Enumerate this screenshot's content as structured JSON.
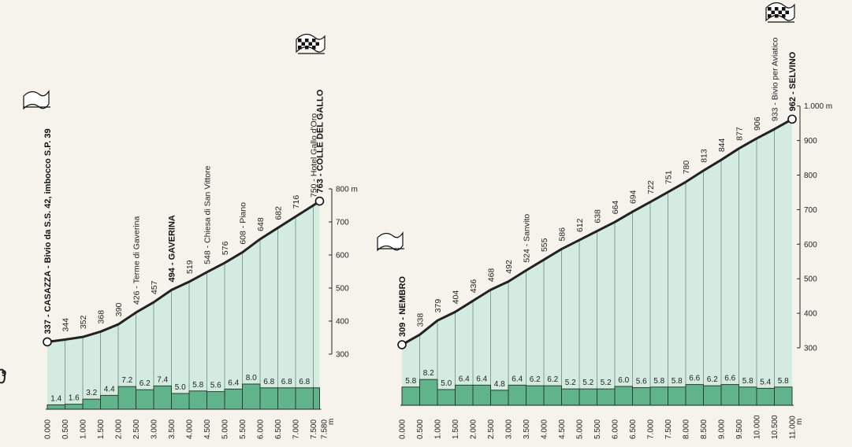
{
  "chart_data": [
    {
      "type": "area",
      "x_unit": "m",
      "y_unit": "m",
      "ylim": [
        300,
        800
      ],
      "y_ticks": [
        300,
        400,
        500,
        600,
        700,
        800
      ],
      "y_tick_labels": [
        "300",
        "400",
        "500",
        "600",
        "700",
        "800 m"
      ],
      "x": [
        0,
        0.5,
        1.0,
        1.5,
        2.0,
        2.5,
        3.0,
        3.5,
        4.0,
        4.5,
        5.0,
        5.5,
        6.0,
        6.5,
        7.0,
        7.5
      ],
      "x_tick_labels": [
        "0.000",
        "0.500",
        "1.000",
        "1.500",
        "2.000",
        "2.500",
        "3.000",
        "3.500",
        "4.000",
        "4.500",
        "5.000",
        "5.500",
        "6.000",
        "6.500",
        "7.000",
        "7.500"
      ],
      "x_last_extra": "7.580",
      "elevation": [
        337,
        344,
        352,
        368,
        390,
        426,
        457,
        494,
        519,
        548,
        576,
        608,
        648,
        682,
        716,
        750,
        763
      ],
      "elevation_x": [
        0,
        0.5,
        1.0,
        1.5,
        2.0,
        2.5,
        3.0,
        3.5,
        4.0,
        4.5,
        5.0,
        5.5,
        6.0,
        6.5,
        7.0,
        7.5,
        7.58
      ],
      "point_labels": [
        "337 - CASAZZA - Bivio da S.S. 42, imbocco S.P. 39",
        "344",
        "352",
        "368",
        "390",
        "426 - Terme di Gaverina",
        "457",
        "494 - GAVERINA",
        "519",
        "548 - Chiesa di San Vittore",
        "576",
        "608 - Piano",
        "648",
        "682",
        "716",
        "750 - Hotel Gallo d'Oro",
        "763 - COLLE DEL GALLO"
      ],
      "gradients": [
        1.4,
        1.6,
        3.2,
        4.4,
        7.2,
        6.2,
        7.4,
        5.0,
        5.8,
        5.6,
        6.4,
        8.0,
        6.8,
        6.8,
        6.8,
        6.8
      ],
      "gradient_labels": [
        "1.4",
        "1.6",
        "3.2",
        "4.4",
        "7.2",
        "6.2",
        "7.4",
        "5.0",
        "5.8",
        "5.6",
        "6.4",
        "8.0",
        "6.8",
        "6.8",
        "6.8",
        ""
      ],
      "fill_color": "#d4ece0",
      "bar_color": "#5fb48c",
      "line_color": "#222222"
    },
    {
      "type": "area",
      "x_unit": "m",
      "y_unit": "m",
      "ylim": [
        300,
        1000
      ],
      "y_ticks": [
        300,
        400,
        500,
        600,
        700,
        800,
        900,
        1000
      ],
      "y_tick_labels": [
        "300",
        "400",
        "500",
        "600",
        "700",
        "800",
        "900",
        "1.000 m"
      ],
      "x": [
        0,
        0.5,
        1.0,
        1.5,
        2.0,
        2.5,
        3.0,
        3.5,
        4.0,
        4.5,
        5.0,
        5.5,
        6.0,
        6.5,
        7.0,
        7.5,
        8.0,
        8.5,
        9.0,
        9.5,
        10.0,
        10.5,
        11.0
      ],
      "x_tick_labels": [
        "0.000",
        "0.500",
        "1.000",
        "1.500",
        "2.000",
        "2.500",
        "3.000",
        "3.500",
        "4.000",
        "4.500",
        "5.000",
        "5.500",
        "6.000",
        "6.500",
        "7.000",
        "7.500",
        "8.000",
        "8.500",
        "9.000",
        "9.500",
        "10.000",
        "10.500",
        "11.000"
      ],
      "elevation": [
        309,
        338,
        379,
        404,
        436,
        468,
        492,
        524,
        555,
        586,
        612,
        638,
        664,
        694,
        722,
        751,
        780,
        813,
        844,
        877,
        906,
        933,
        962
      ],
      "point_labels": [
        "309 - NEMBRO",
        "338",
        "379",
        "404",
        "436",
        "468",
        "492",
        "524 - Sanvito",
        "555",
        "586",
        "612",
        "638",
        "664",
        "694",
        "722",
        "751",
        "780",
        "813",
        "844",
        "877",
        "906",
        "933 - Bivio per Aviatico",
        "962 - SELVINO"
      ],
      "gradients": [
        5.8,
        8.2,
        5.0,
        6.4,
        6.4,
        4.8,
        6.4,
        6.2,
        6.2,
        5.2,
        5.2,
        5.2,
        6.0,
        5.6,
        5.8,
        5.8,
        6.6,
        6.2,
        6.6,
        5.8,
        5.4,
        5.8
      ],
      "fill_color": "#d4ece0",
      "bar_color": "#5fb48c",
      "line_color": "#222222"
    }
  ],
  "axis_unit_label": "m",
  "left_edge_fragment": "9"
}
